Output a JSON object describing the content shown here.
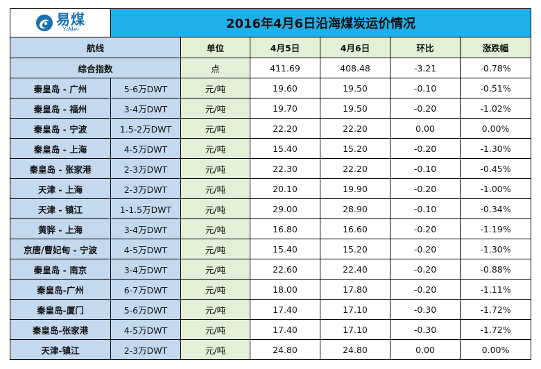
{
  "logo": {
    "name_cn": "易煤",
    "name_en": "YiMei"
  },
  "title": "2016年4月6日沿海煤炭运价情况",
  "headers": {
    "route": "航线",
    "unit": "单位",
    "date1": "4月5日",
    "date2": "4月6日",
    "change": "环比",
    "pct": "涨跌幅"
  },
  "index_row": {
    "label": "综合指数",
    "unit": "点",
    "v1": "411.69",
    "v2": "408.48",
    "change": "-3.21",
    "pct": "-0.78%"
  },
  "rows": [
    {
      "route": "秦皇岛 - 广州",
      "ship": "5-6万DWT",
      "unit": "元/吨",
      "v1": "19.60",
      "v2": "19.50",
      "change": "-0.10",
      "pct": "-0.51%"
    },
    {
      "route": "秦皇岛 - 福州",
      "ship": "3-4万DWT",
      "unit": "元/吨",
      "v1": "19.70",
      "v2": "19.50",
      "change": "-0.20",
      "pct": "-1.02%"
    },
    {
      "route": "秦皇岛 - 宁波",
      "ship": "1.5-2万DWT",
      "unit": "元/吨",
      "v1": "22.20",
      "v2": "22.20",
      "change": "0.00",
      "pct": "0.00%"
    },
    {
      "route": "秦皇岛 - 上海",
      "ship": "4-5万DWT",
      "unit": "元/吨",
      "v1": "15.40",
      "v2": "15.20",
      "change": "-0.20",
      "pct": "-1.30%"
    },
    {
      "route": "秦皇岛 - 张家港",
      "ship": "2-3万DWT",
      "unit": "元/吨",
      "v1": "22.30",
      "v2": "22.20",
      "change": "-0.10",
      "pct": "-0.45%"
    },
    {
      "route": "天津 - 上海",
      "ship": "2-3万DWT",
      "unit": "元/吨",
      "v1": "20.10",
      "v2": "19.90",
      "change": "-0.20",
      "pct": "-1.00%"
    },
    {
      "route": "天津 - 镇江",
      "ship": "1-1.5万DWT",
      "unit": "元/吨",
      "v1": "29.00",
      "v2": "28.90",
      "change": "-0.10",
      "pct": "-0.34%"
    },
    {
      "route": "黄骅 - 上海",
      "ship": "3-4万DWT",
      "unit": "元/吨",
      "v1": "16.80",
      "v2": "16.60",
      "change": "-0.20",
      "pct": "-1.19%"
    },
    {
      "route": "京唐/曹妃甸 - 宁波",
      "ship": "4-5万DWT",
      "unit": "元/吨",
      "v1": "15.40",
      "v2": "15.20",
      "change": "-0.20",
      "pct": "-1.30%"
    },
    {
      "route": "秦皇岛 - 南京",
      "ship": "3-4万DWT",
      "unit": "元/吨",
      "v1": "22.60",
      "v2": "22.40",
      "change": "-0.20",
      "pct": "-0.88%"
    },
    {
      "route": "秦皇岛-广州",
      "ship": "6-7万DWT",
      "unit": "元/吨",
      "v1": "18.00",
      "v2": "17.80",
      "change": "-0.20",
      "pct": "-1.11%"
    },
    {
      "route": "秦皇岛-厦门",
      "ship": "5-6万DWT",
      "unit": "元/吨",
      "v1": "17.40",
      "v2": "17.10",
      "change": "-0.30",
      "pct": "-1.72%"
    },
    {
      "route": "秦皇岛-张家港",
      "ship": "4-5万DWT",
      "unit": "元/吨",
      "v1": "17.40",
      "v2": "17.10",
      "change": "-0.30",
      "pct": "-1.72%"
    },
    {
      "route": "天津-镇江",
      "ship": "2-3万DWT",
      "unit": "元/吨",
      "v1": "24.80",
      "v2": "24.80",
      "change": "0.00",
      "pct": "0.00%"
    }
  ],
  "colors": {
    "title_bg": "#1fb0ea",
    "route_bg": "#c4d9ee",
    "unit_bg": "#e3f0d7",
    "logo_blue": "#1a6fae"
  }
}
